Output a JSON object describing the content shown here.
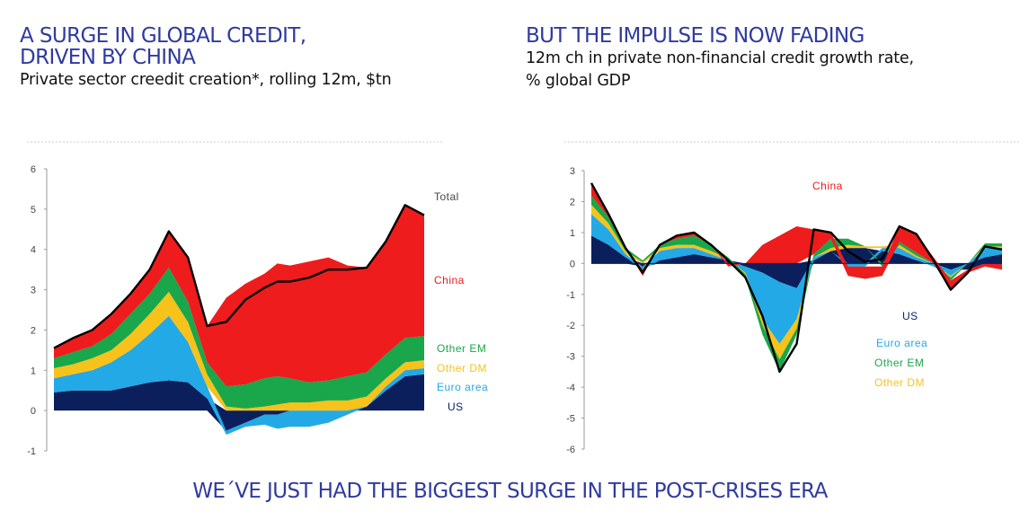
{
  "left": {
    "title_line1": "A SURGE IN GLOBAL CREDIT,",
    "title_line2": "DRIVEN BY CHINA",
    "subtitle": "Private sector creedit creation*, rolling 12m, $tn"
  },
  "right": {
    "title": "BUT THE IMPULSE IS NOW FADING",
    "subtitle_line1": "12m ch in private non-financial credit growth rate,",
    "subtitle_line2": "% global GDP"
  },
  "footer": "WE´VE JUST HAD THE BIGGEST SURGE IN THE POST-CRISES ERA",
  "colors": {
    "US": "#0b1f5c",
    "Euro area": "#22a9e6",
    "Other DM": "#f7c21a",
    "Other EM": "#1aa64a",
    "China": "#ee1c1c",
    "Total": "#000000",
    "title": "#2f3aa0"
  },
  "chart_data": [
    {
      "type": "area",
      "stacked": true,
      "ylim": [
        -1,
        6
      ],
      "yticks": [
        "6",
        "5",
        "4",
        "3",
        "2",
        "1",
        "0",
        "-1"
      ],
      "x": [
        0,
        6,
        12,
        18,
        24,
        30,
        36,
        42,
        48,
        54,
        60,
        66,
        70,
        74,
        80,
        86,
        92,
        98,
        104,
        110,
        116
      ],
      "series": [
        {
          "name": "US",
          "values": [
            0.45,
            0.5,
            0.5,
            0.5,
            0.6,
            0.7,
            0.75,
            0.7,
            0.3,
            -0.5,
            -0.3,
            -0.1,
            -0.1,
            0.0,
            0.0,
            0.0,
            0.0,
            0.1,
            0.5,
            0.85,
            0.9
          ]
        },
        {
          "name": "Euro area",
          "values": [
            0.35,
            0.4,
            0.5,
            0.7,
            0.9,
            1.2,
            1.6,
            1.0,
            0.3,
            -0.1,
            -0.1,
            -0.25,
            -0.35,
            -0.4,
            -0.4,
            -0.3,
            -0.1,
            0.0,
            0.1,
            0.15,
            0.15
          ]
        },
        {
          "name": "Other DM",
          "values": [
            0.25,
            0.25,
            0.3,
            0.3,
            0.4,
            0.5,
            0.6,
            0.5,
            0.3,
            0.1,
            0.05,
            0.1,
            0.15,
            0.2,
            0.2,
            0.25,
            0.25,
            0.25,
            0.2,
            0.2,
            0.2
          ]
        },
        {
          "name": "Other EM",
          "values": [
            0.25,
            0.3,
            0.3,
            0.4,
            0.5,
            0.5,
            0.6,
            0.5,
            0.3,
            0.5,
            0.6,
            0.7,
            0.7,
            0.6,
            0.5,
            0.5,
            0.6,
            0.6,
            0.6,
            0.6,
            0.6
          ]
        },
        {
          "name": "China",
          "values": [
            0.25,
            0.35,
            0.4,
            0.5,
            0.5,
            0.6,
            0.9,
            1.1,
            0.9,
            2.2,
            2.5,
            2.6,
            2.8,
            2.8,
            3.0,
            3.05,
            2.75,
            2.6,
            2.8,
            3.3,
            3.0
          ]
        }
      ],
      "total": {
        "name": "Total",
        "values": [
          1.55,
          1.8,
          2.0,
          2.4,
          2.9,
          3.5,
          4.45,
          3.8,
          2.1,
          2.2,
          2.75,
          3.05,
          3.2,
          3.2,
          3.3,
          3.5,
          3.5,
          3.55,
          4.2,
          5.1,
          4.85
        ]
      },
      "labels": [
        "Total",
        "China",
        "Other EM",
        "Other DM",
        "Euro area",
        "US"
      ]
    },
    {
      "type": "area",
      "stacked": true,
      "ylim": [
        -6,
        3
      ],
      "yticks": [
        "3",
        "2",
        "1",
        "0",
        "-1",
        "-2",
        "-3",
        "-4",
        "-5",
        "-6"
      ],
      "x": [
        0,
        5,
        10,
        15,
        20,
        25,
        30,
        35,
        40,
        45,
        50,
        55,
        60,
        65,
        70,
        75,
        80,
        85,
        90,
        95,
        100,
        105,
        110,
        115,
        120
      ],
      "series": [
        {
          "name": "US",
          "values": [
            0.9,
            0.6,
            0.2,
            -0.1,
            0.1,
            0.2,
            0.3,
            0.2,
            0.1,
            -0.1,
            -0.3,
            -0.6,
            -0.8,
            0.1,
            0.4,
            0.5,
            0.5,
            0.4,
            0.3,
            0.1,
            0.0,
            -0.2,
            -0.2,
            0.2,
            0.3
          ]
        },
        {
          "name": "Euro area",
          "values": [
            0.7,
            0.5,
            0.1,
            -0.1,
            0.3,
            0.3,
            0.2,
            0.1,
            0.0,
            -0.2,
            -1.5,
            -2.0,
            -1.0,
            0.1,
            0.0,
            -0.1,
            -0.1,
            0.1,
            0.2,
            0.1,
            -0.1,
            -0.2,
            0.0,
            0.3,
            0.2
          ]
        },
        {
          "name": "Other DM",
          "values": [
            0.3,
            0.2,
            0.1,
            0.05,
            0.1,
            0.1,
            0.1,
            0.1,
            0.05,
            -0.05,
            -0.2,
            -0.5,
            -0.3,
            0.0,
            0.1,
            0.1,
            0.05,
            0.05,
            0.1,
            0.05,
            0.0,
            -0.05,
            0.0,
            0.05,
            0.05
          ]
        },
        {
          "name": "Other EM",
          "values": [
            0.3,
            0.2,
            0.1,
            0.05,
            0.1,
            0.2,
            0.3,
            0.2,
            0.05,
            -0.1,
            -0.3,
            -0.4,
            -0.2,
            0.1,
            0.3,
            0.2,
            0.0,
            -0.1,
            0.1,
            0.1,
            0.0,
            -0.1,
            0.0,
            0.1,
            0.1
          ]
        },
        {
          "name": "China",
          "values": [
            0.4,
            0.1,
            0.0,
            -0.2,
            0.0,
            0.1,
            0.1,
            0.0,
            -0.1,
            0.0,
            0.6,
            0.9,
            1.2,
            0.8,
            0.2,
            -0.3,
            -0.4,
            -0.3,
            0.5,
            0.6,
            0.2,
            -0.3,
            -0.1,
            -0.1,
            -0.2
          ]
        }
      ],
      "total": {
        "name": "Total",
        "values": [
          2.6,
          1.6,
          0.5,
          -0.3,
          0.6,
          0.9,
          1.0,
          0.6,
          0.1,
          -0.45,
          -1.7,
          -3.5,
          -2.6,
          1.1,
          1.0,
          0.4,
          0.05,
          0.15,
          1.2,
          0.95,
          0.1,
          -0.85,
          -0.3,
          0.55,
          0.45
        ]
      },
      "labels": [
        "China",
        "US",
        "Euro area",
        "Other EM",
        "Other DM"
      ]
    }
  ]
}
